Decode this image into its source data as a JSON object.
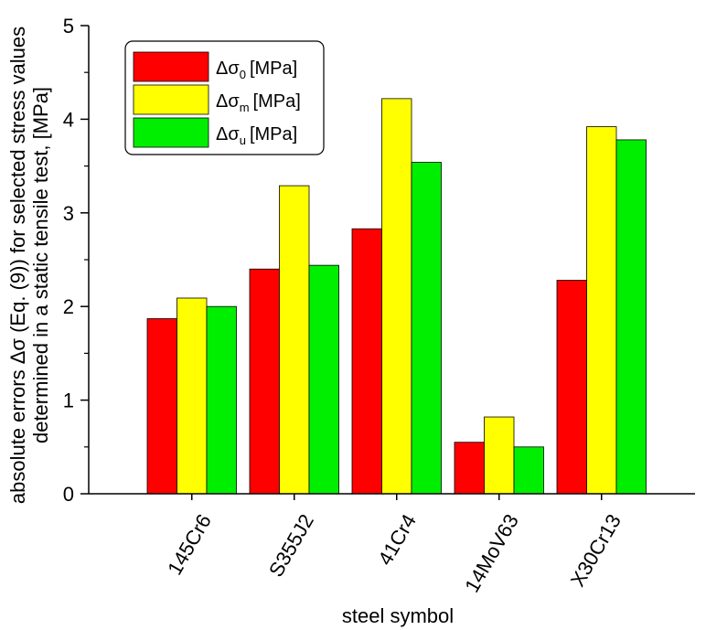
{
  "chart_data": {
    "type": "bar",
    "title": "",
    "xlabel": "steel symbol",
    "ylabel_line1": "absolute errors Δσ (Eq. (9)) for selected stress values",
    "ylabel_line2": "determined in a static tensile test, [MPa]",
    "ylim": [
      0,
      5
    ],
    "yticks": [
      0,
      1,
      2,
      3,
      4,
      5
    ],
    "categories": [
      "145Cr6",
      "S355J2",
      "41Cr4",
      "14MoV63",
      "X30Cr13"
    ],
    "series": [
      {
        "name": "Δσ0 [MPa]",
        "symbol": "Δσ",
        "subscript": "0",
        "unit": "[MPa]",
        "color": "#ff0000",
        "values": [
          1.87,
          2.4,
          2.83,
          0.55,
          2.28
        ]
      },
      {
        "name": "Δσm [MPa]",
        "symbol": "Δσ",
        "subscript": "m",
        "unit": "[MPa]",
        "color": "#ffff00",
        "values": [
          2.09,
          3.29,
          4.22,
          0.82,
          3.92
        ]
      },
      {
        "name": "Δσu [MPa]",
        "symbol": "Δσ",
        "subscript": "u",
        "unit": "[MPa]",
        "color": "#00ee00",
        "values": [
          2.0,
          2.44,
          3.54,
          0.5,
          3.78
        ]
      }
    ],
    "legend_position": "top-left",
    "grid": false
  }
}
